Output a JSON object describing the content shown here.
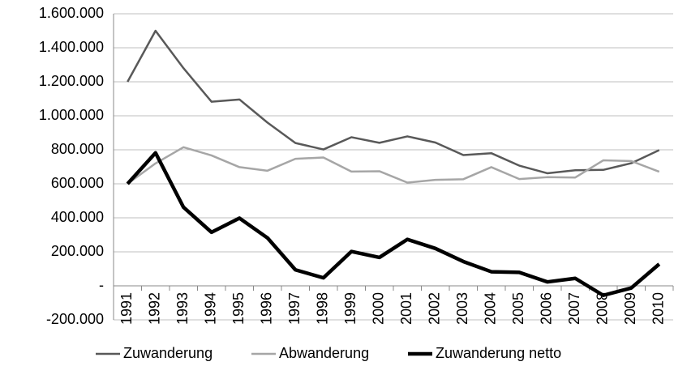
{
  "chart_data": {
    "type": "line",
    "categories": [
      "1991",
      "1992",
      "1993",
      "1994",
      "1995",
      "1996",
      "1997",
      "1998",
      "1999",
      "2000",
      "2001",
      "2002",
      "2003",
      "2004",
      "2005",
      "2006",
      "2007",
      "2008",
      "2009",
      "2010"
    ],
    "series": [
      {
        "name": "Zuwanderung",
        "color": "#595959",
        "width": 2.5,
        "values": [
          1200000,
          1500000,
          1280000,
          1083000,
          1096000,
          960000,
          840000,
          802000,
          874000,
          841000,
          879000,
          843000,
          769000,
          780000,
          707000,
          662000,
          680000,
          682000,
          721000,
          798000
        ]
      },
      {
        "name": "Abwanderung",
        "color": "#a6a6a6",
        "width": 2.5,
        "values": [
          600000,
          720000,
          815000,
          767000,
          698000,
          677000,
          747000,
          755000,
          672000,
          674000,
          607000,
          623000,
          627000,
          698000,
          628000,
          639000,
          637000,
          738000,
          734000,
          671000
        ]
      },
      {
        "name": "Zuwanderung netto",
        "color": "#000000",
        "width": 4.5,
        "values": [
          600000,
          782000,
          462000,
          315000,
          398000,
          282000,
          94000,
          47000,
          202000,
          167000,
          273000,
          220000,
          143000,
          83000,
          79000,
          23000,
          44000,
          -56000,
          -13000,
          128000
        ]
      }
    ],
    "ylim": [
      -200000,
      1600000
    ],
    "yticks": [
      {
        "value": -200000,
        "label": "-200.000"
      },
      {
        "value": 0,
        "label": "-"
      },
      {
        "value": 200000,
        "label": "200.000"
      },
      {
        "value": 400000,
        "label": "400.000"
      },
      {
        "value": 600000,
        "label": "600.000"
      },
      {
        "value": 800000,
        "label": "800.000"
      },
      {
        "value": 1000000,
        "label": "1.000.000"
      },
      {
        "value": 1200000,
        "label": "1.200.000"
      },
      {
        "value": 1400000,
        "label": "1.400.000"
      },
      {
        "value": 1600000,
        "label": "1.600.000"
      }
    ],
    "grid": true,
    "legend": "bottom"
  }
}
